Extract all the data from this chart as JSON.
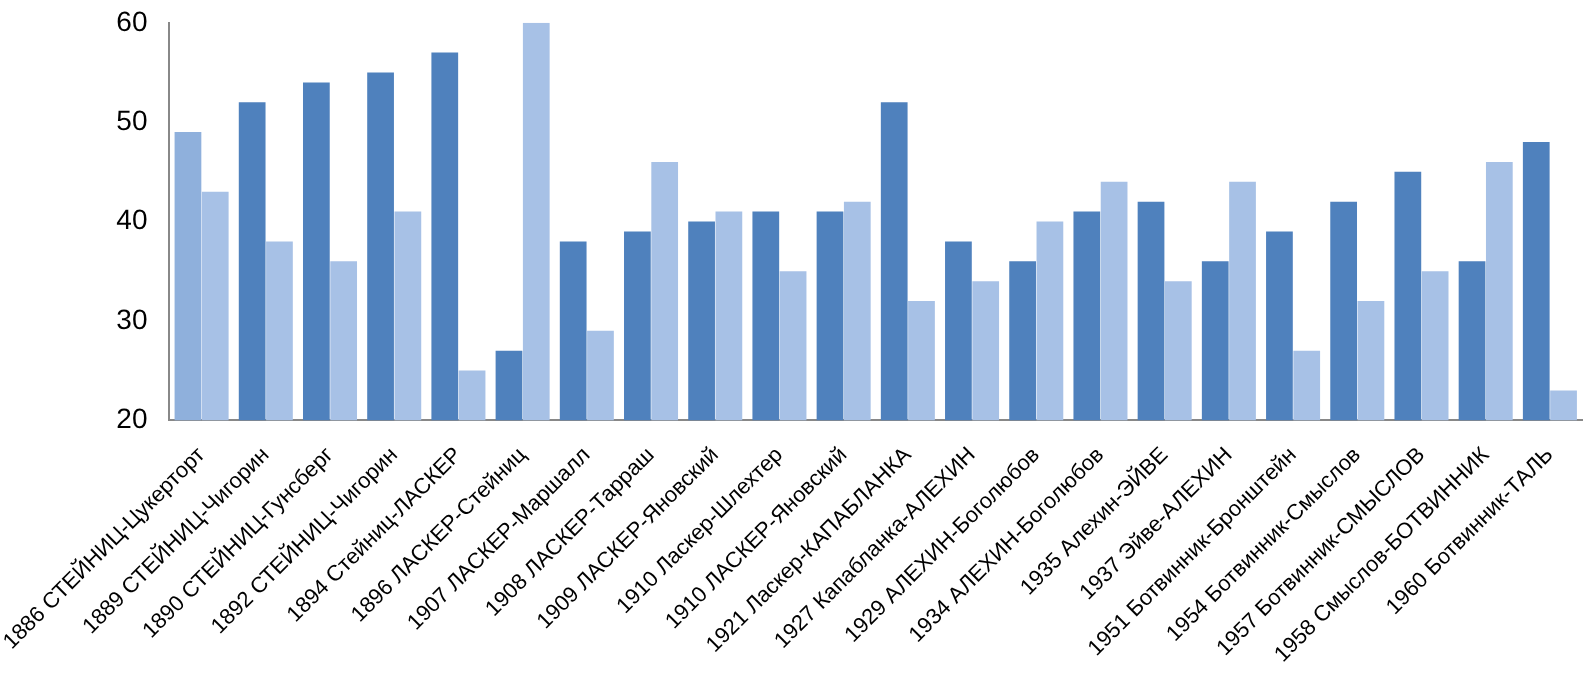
{
  "chart_data": {
    "type": "bar",
    "categories": [
      "1886 СТЕЙНИЦ-Цукерторт",
      "1889 СТЕЙНИЦ-Чигорин",
      "1890 СТЕЙНИЦ-Гунсберг",
      "1892 СТЕЙНИЦ-Чигорин",
      "1894 Стейниц-ЛАСКЕР",
      "1896 ЛАСКЕР-Стейниц",
      "1907 ЛАСКЕР-Маршалл",
      "1908 ЛАСКЕР-Тарраш",
      "1909 ЛАСКЕР-Яновский",
      "1910 Ласкер-Шлехтер",
      "1910 ЛАСКЕР-Яновский",
      "1921 Ласкер-КАПАБЛАНКА",
      "1927 Капабланка-АЛЕХИН",
      "1929 АЛЕХИН-Боголюбов",
      "1934 АЛЕХИН-Боголюбов",
      "1935 Алехин-ЭЙВЕ",
      "1937 Эйве-АЛЕХИН",
      "1951 Ботвинник-Бронштейн",
      "1954 Ботвинник-Смыслов",
      "1957 Ботвинник-СМЫСЛОВ",
      "1958 Смыслов-БОТВИННИК",
      "1960 Ботвинник-ТАЛЬ"
    ],
    "series": [
      {
        "color": "#4f81bd",
        "colors": [
          "#8fb0dc",
          "#4f81bd",
          "#4f81bd",
          "#4f81bd",
          "#4f81bd",
          "#4f81bd",
          "#4f81bd",
          "#4f81bd",
          "#4f81bd",
          "#4f81bd",
          "#4f81bd",
          "#4f81bd",
          "#4f81bd",
          "#4f81bd",
          "#4f81bd",
          "#4f81bd",
          "#4f81bd",
          "#4f81bd",
          "#4f81bd",
          "#4f81bd",
          "#4f81bd",
          "#4f81bd"
        ],
        "values": [
          49,
          52,
          54,
          55,
          57,
          27,
          38,
          39,
          40,
          41,
          41,
          52,
          38,
          36,
          41,
          42,
          36,
          39,
          42,
          45,
          36,
          48
        ]
      },
      {
        "color": "#a7c1e6",
        "values": [
          43,
          38,
          36,
          41,
          25,
          60,
          29,
          46,
          41,
          35,
          42,
          32,
          34,
          40,
          44,
          34,
          44,
          27,
          32,
          35,
          46,
          23
        ]
      }
    ],
    "ylim": [
      20,
      60
    ],
    "yticks": [
      20,
      30,
      40,
      50,
      60
    ],
    "grid": false,
    "legend": false
  }
}
